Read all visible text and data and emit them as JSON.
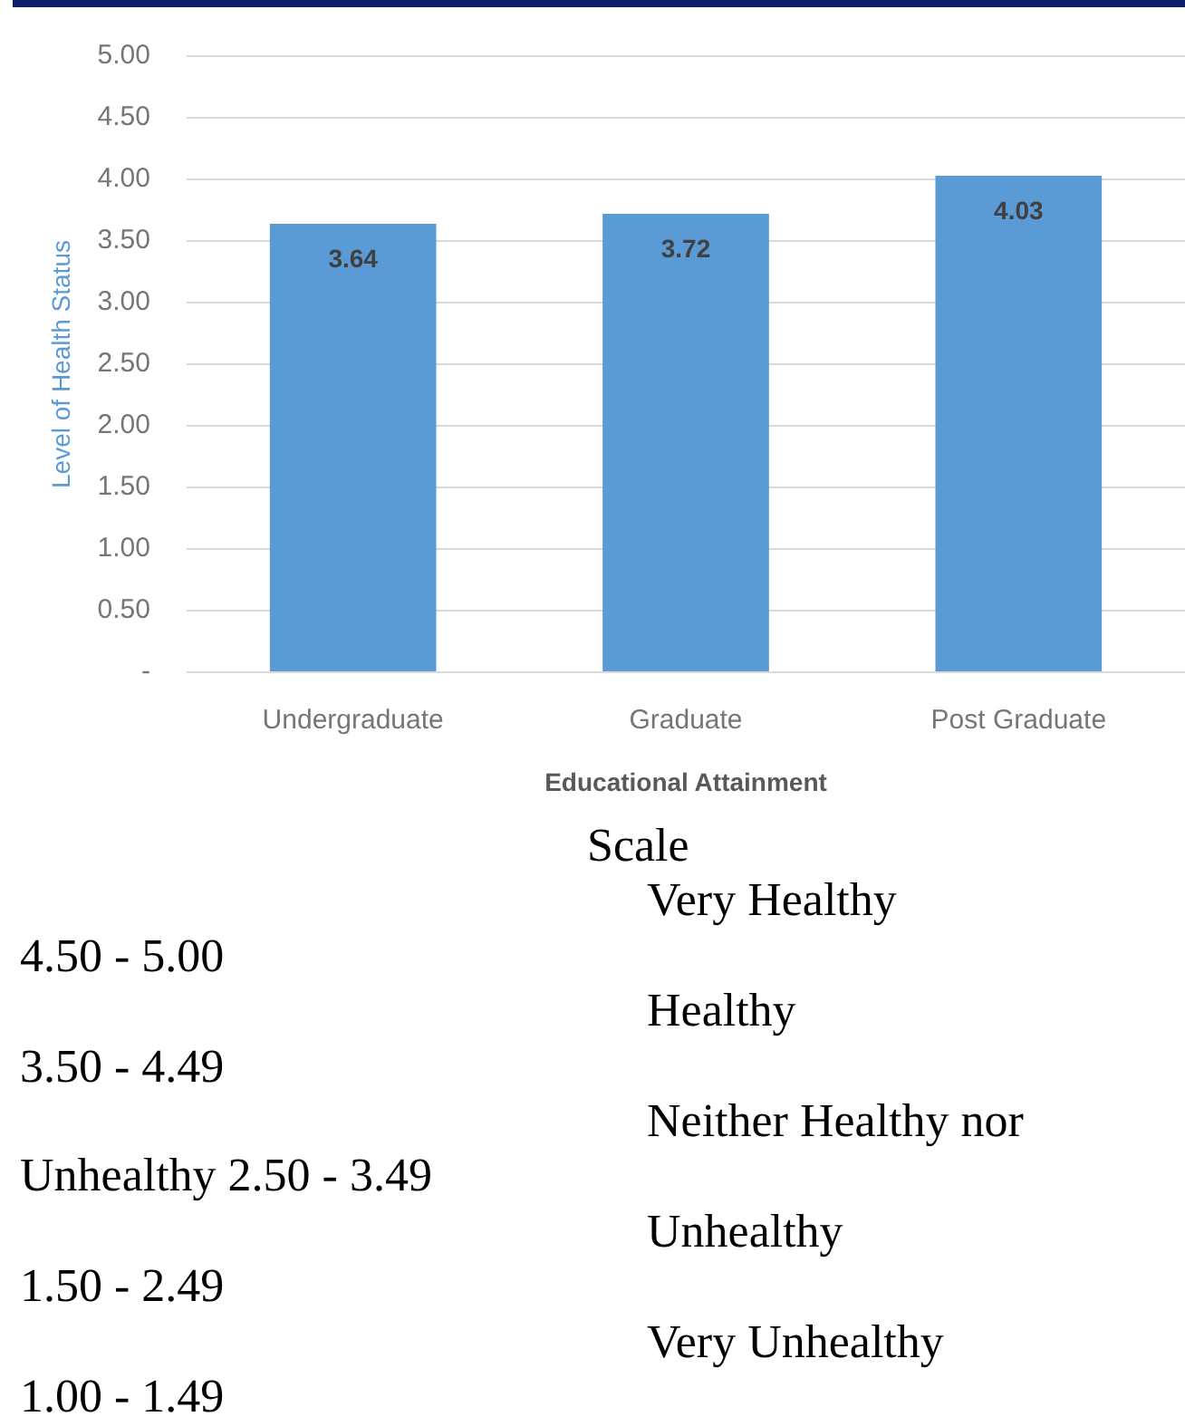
{
  "chart_data": {
    "type": "bar",
    "categories": [
      "Undergraduate",
      "Graduate",
      "Post Graduate"
    ],
    "values": [
      3.64,
      3.72,
      4.03
    ],
    "color": "#5b9bd5",
    "xlabel": "Educational Attainment",
    "ylabel": "Level of Health Status",
    "ylim": [
      0,
      5
    ],
    "yticks": [
      {
        "value": 0,
        "label": "-"
      },
      {
        "value": 0.5,
        "label": "0.50"
      },
      {
        "value": 1,
        "label": "1.00"
      },
      {
        "value": 1.5,
        "label": "1.50"
      },
      {
        "value": 2,
        "label": "2.00"
      },
      {
        "value": 2.5,
        "label": "2.50"
      },
      {
        "value": 3,
        "label": "3.00"
      },
      {
        "value": 3.5,
        "label": "3.50"
      },
      {
        "value": 4,
        "label": "4.00"
      },
      {
        "value": 4.5,
        "label": "4.50"
      },
      {
        "value": 5,
        "label": "5.00"
      }
    ],
    "grid": "y",
    "data_labels": true,
    "annotations": [
      "Scale",
      "Very Healthy",
      "4.50 - 5.00",
      "Healthy",
      "3.50 - 4.49",
      "Neither Healthy nor",
      "Unhealthy 2.50 - 3.49",
      "Unhealthy",
      "1.50 - 2.49",
      "Very Unhealthy",
      "1.00 - 1.49"
    ]
  }
}
